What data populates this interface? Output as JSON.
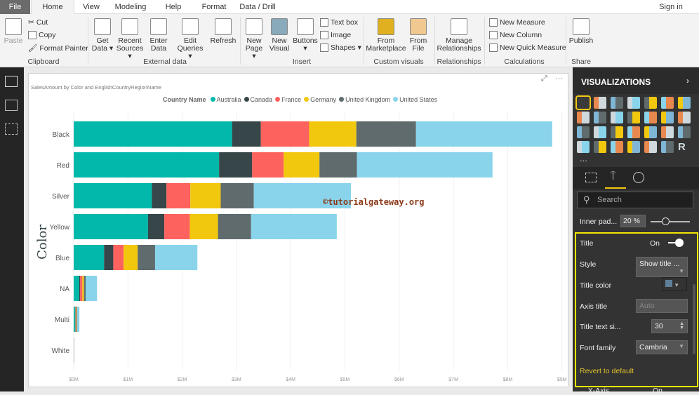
{
  "ribbon_tabs": [
    "File",
    "Home",
    "View",
    "Modeling",
    "Help",
    "Format",
    "Data / Drill"
  ],
  "sign_in": "Sign in",
  "clipboard": {
    "paste": "Paste",
    "cut": "Cut",
    "copy": "Copy",
    "format_painter": "Format Painter",
    "group": "Clipboard"
  },
  "external": {
    "get_data": "Get Data",
    "recent": "Recent Sources",
    "enter": "Enter Data",
    "edit": "Edit Queries",
    "refresh": "Refresh",
    "group": "External data"
  },
  "insert": {
    "new_page": "New Page",
    "new_visual": "New Visual",
    "buttons": "Buttons",
    "text_box": "Text box",
    "image": "Image",
    "shapes": "Shapes",
    "group": "Insert"
  },
  "custom": {
    "marketplace": "From Marketplace",
    "file": "From File",
    "group": "Custom visuals"
  },
  "relationships": {
    "manage": "Manage Relationships",
    "group": "Relationships"
  },
  "calculations": {
    "measure": "New Measure",
    "column": "New Column",
    "quick": "New Quick Measure",
    "group": "Calculations"
  },
  "share": {
    "publish": "Publish",
    "group": "Share"
  },
  "chart_data": {
    "type": "bar",
    "orientation": "horizontal",
    "stacked": true,
    "title": "SalesAmount by Color and EnglishCountryRegionName",
    "ylabel": "Color",
    "xlabel": "",
    "legend_title": "Country Name",
    "legend_position": "top",
    "categories": [
      "Black",
      "Red",
      "Silver",
      "Yellow",
      "Blue",
      "NA",
      "Multi",
      "White"
    ],
    "series": [
      {
        "name": "Australia",
        "color": "#01B8AA",
        "values": [
          2.92,
          2.68,
          1.44,
          1.37,
          0.56,
          0.1,
          0.03,
          0.002
        ]
      },
      {
        "name": "Canada",
        "color": "#374649",
        "values": [
          0.53,
          0.61,
          0.27,
          0.3,
          0.17,
          0.02,
          0.005,
          0.0005
        ]
      },
      {
        "name": "France",
        "color": "#FD625E",
        "values": [
          0.89,
          0.58,
          0.44,
          0.47,
          0.19,
          0.04,
          0.01,
          0.0005
        ]
      },
      {
        "name": "Germany",
        "color": "#F2C80F",
        "values": [
          0.87,
          0.66,
          0.56,
          0.52,
          0.26,
          0.03,
          0.01,
          0.0005
        ]
      },
      {
        "name": "United Kingdom",
        "color": "#5F6B6D",
        "values": [
          1.1,
          0.69,
          0.61,
          0.61,
          0.32,
          0.03,
          0.01,
          0.0005
        ]
      },
      {
        "name": "United States",
        "color": "#8AD4EB",
        "values": [
          2.51,
          2.5,
          1.79,
          1.58,
          0.78,
          0.21,
          0.04,
          0.002
        ]
      }
    ],
    "units": "$M",
    "xticks": [
      "$0M",
      "$1M",
      "$2M",
      "$3M",
      "$4M",
      "$5M",
      "$6M",
      "$7M",
      "$8M",
      "$9M"
    ],
    "xlim": [
      0,
      9
    ]
  },
  "watermark": "©tutorialgateway.org",
  "panel": {
    "header": "VISUALIZATIONS",
    "viz_icons": [
      "stacked-bar",
      "stacked-column",
      "clustered-bar",
      "clustered-column",
      "100-bar",
      "100-column",
      "line",
      "area",
      "stacked-area",
      "line-column",
      "line-clustered",
      "ribbon",
      "waterfall",
      "scatter",
      "pie",
      "donut",
      "treemap",
      "map",
      "filled-map",
      "funnel",
      "gauge",
      "card",
      "multi-row-card",
      "kpi",
      "slicer",
      "table",
      "matrix",
      "r-visual"
    ],
    "more": "...",
    "search_placeholder": "Search",
    "inner_padding_label": "Inner pad...",
    "inner_padding_value": "20",
    "inner_padding_unit": "%",
    "inner_padding_fraction": 0.2,
    "title_label": "Title",
    "title_state": "On",
    "style_label": "Style",
    "style_value": "Show title ...",
    "title_color_label": "Title color",
    "axis_title_label": "Axis title",
    "axis_title_placeholder": "Auto",
    "text_size_label": "Title text si...",
    "text_size_value": "30",
    "font_family_label": "Font family",
    "font_family_value": "Cambria",
    "revert": "Revert to default",
    "xaxis_label": "X-Axis",
    "xaxis_state": "On"
  }
}
